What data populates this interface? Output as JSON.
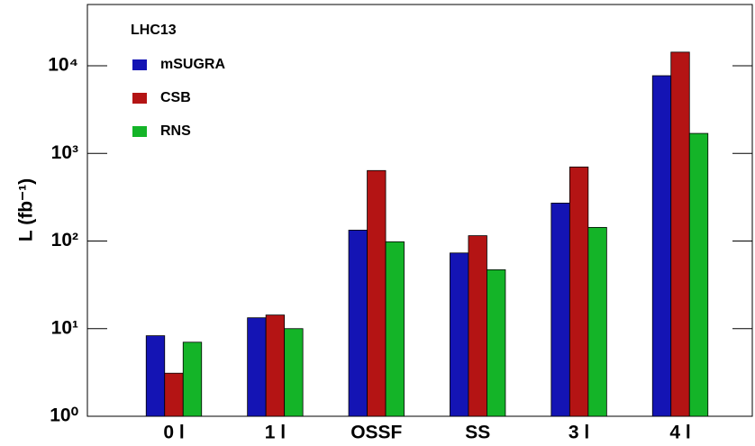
{
  "chart_data": {
    "type": "bar",
    "log_scale": true,
    "y_label": "L (fb⁻¹)",
    "legend_title": "LHC13",
    "legend_position": "upper left",
    "categories": [
      "0 l",
      "1 l",
      "OSSF",
      "SS",
      "3 l",
      "4 l"
    ],
    "series": [
      {
        "name": "mSUGRA",
        "color": "#1414b4",
        "values": [
          8.3,
          13.3,
          133,
          73,
          271,
          7700
        ]
      },
      {
        "name": "CSB",
        "color": "#b41414",
        "values": [
          3.1,
          14.3,
          637,
          115,
          700,
          14300
        ]
      },
      {
        "name": "RNS",
        "color": "#14b428",
        "values": [
          7.0,
          10,
          98,
          47,
          143,
          1690
        ]
      }
    ],
    "ylim": [
      1,
      50000
    ],
    "yticks": [
      {
        "value": 1,
        "label": "10⁰"
      },
      {
        "value": 10,
        "label": "10¹"
      },
      {
        "value": 100,
        "label": "10²"
      },
      {
        "value": 1000,
        "label": "10³"
      },
      {
        "value": 10000,
        "label": "10⁴"
      }
    ]
  }
}
